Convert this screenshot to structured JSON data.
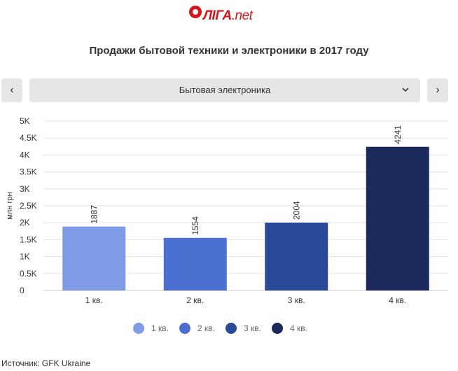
{
  "header": {
    "logo_main": "ЛIГА",
    "logo_suffix": ".net",
    "title": "Продажи бытовой техники и электроники в 2017 году"
  },
  "controls": {
    "prev_icon": "chevron-left-icon",
    "next_icon": "chevron-right-icon",
    "prev_glyph": "‹",
    "next_glyph": "›",
    "selected_category": "Бытовая электроника"
  },
  "colors": {
    "brand": "#d7141a",
    "series": [
      "#7f9be6",
      "#4a6fd0",
      "#2a4a98",
      "#1b2a5a"
    ],
    "grid": "#e3e3e3"
  },
  "chart_data": {
    "type": "bar",
    "title": "Продажи бытовой техники и электроники в 2017 году",
    "ylabel": "млн грн",
    "xlabel": "",
    "categories": [
      "1 кв.",
      "2 кв.",
      "3 кв.",
      "4 кв."
    ],
    "values": [
      1887,
      1554,
      2004,
      4241
    ],
    "data_labels": [
      "1887",
      "1554",
      "2004",
      "4241"
    ],
    "ylim": [
      0,
      5000
    ],
    "yticks": [
      0,
      500,
      1000,
      1500,
      2000,
      2500,
      3000,
      3500,
      4000,
      4500,
      5000
    ],
    "ytick_labels": [
      "0",
      "0.5K",
      "1K",
      "1.5K",
      "2K",
      "2.5K",
      "3K",
      "3.5K",
      "4K",
      "4.5K",
      "5K"
    ],
    "legend": [
      "1 кв.",
      "2 кв.",
      "3 кв.",
      "4 кв."
    ],
    "legend_position": "bottom",
    "grid": true
  },
  "footer": {
    "source": "Источник: GFK Ukraine"
  }
}
